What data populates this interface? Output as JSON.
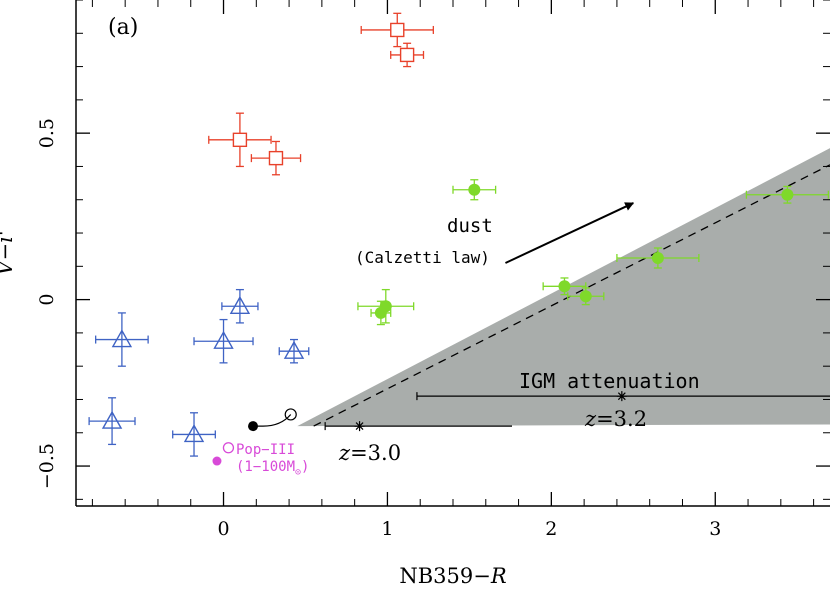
{
  "chart_data": {
    "type": "scatter",
    "panel_label": "(a)",
    "xlabel": "NB359−R",
    "ylabel": "V−i'",
    "xlim": [
      -0.9,
      3.7
    ],
    "ylim": [
      -0.62,
      0.9
    ],
    "xticks": [
      0,
      1,
      2,
      3
    ],
    "xtick_labels": [
      "0",
      "1",
      "2",
      "3"
    ],
    "yticks": [
      -0.5,
      0,
      0.5
    ],
    "ytick_labels": [
      "−0.5",
      "0",
      "0.5"
    ],
    "colors": {
      "red": "#e8412a",
      "blue": "#3f63c4",
      "green": "#7fd92a",
      "magenta": "#d84ad8",
      "shade": "#a9adab"
    },
    "series": [
      {
        "name": "red squares",
        "marker": "square-open",
        "color": "#e8412a",
        "points": [
          {
            "x": 1.06,
            "y": 0.81,
            "xerr": 0.22,
            "yerr": 0.05
          },
          {
            "x": 1.12,
            "y": 0.735,
            "xerr": 0.1,
            "yerr": 0.035
          },
          {
            "x": 0.1,
            "y": 0.48,
            "xerr": 0.19,
            "yerr": 0.08
          },
          {
            "x": 0.32,
            "y": 0.425,
            "xerr": 0.15,
            "yerr": 0.05
          }
        ]
      },
      {
        "name": "blue triangles",
        "marker": "triangle-open",
        "color": "#3f63c4",
        "points": [
          {
            "x": -0.62,
            "y": -0.12,
            "xerr": 0.16,
            "yerr": 0.08
          },
          {
            "x": 0.1,
            "y": -0.02,
            "xerr": 0.11,
            "yerr": 0.05
          },
          {
            "x": 0.0,
            "y": -0.125,
            "xerr": 0.18,
            "yerr": 0.065
          },
          {
            "x": 0.43,
            "y": -0.155,
            "xerr": 0.09,
            "yerr": 0.035
          },
          {
            "x": -0.68,
            "y": -0.365,
            "xerr": 0.14,
            "yerr": 0.07
          },
          {
            "x": -0.18,
            "y": -0.405,
            "xerr": 0.13,
            "yerr": 0.065
          }
        ]
      },
      {
        "name": "green filled circles",
        "marker": "circle-filled",
        "color": "#7fd92a",
        "points": [
          {
            "x": 1.53,
            "y": 0.33,
            "xerr": 0.13,
            "yerr": 0.03
          },
          {
            "x": 0.99,
            "y": -0.02,
            "xerr": 0.17,
            "yerr": 0.05
          },
          {
            "x": 0.96,
            "y": -0.04,
            "xerr": 0.06,
            "yerr": 0.035
          },
          {
            "x": 2.08,
            "y": 0.04,
            "xerr": 0.13,
            "yerr": 0.025
          },
          {
            "x": 2.21,
            "y": 0.01,
            "xerr": 0.11,
            "yerr": 0.025
          },
          {
            "x": 2.65,
            "y": 0.125,
            "xerr": 0.25,
            "yerr": 0.03
          },
          {
            "x": 3.44,
            "y": 0.315,
            "xerr": 0.25,
            "yerr": 0.025
          }
        ]
      }
    ],
    "popiii": {
      "label": "Pop−III",
      "sublabel": "(1−100M",
      "sub_symbol": "⊙",
      "sublabel_close": ")",
      "open_point": {
        "x": 0.03,
        "y": -0.445
      },
      "filled_point": {
        "x": -0.04,
        "y": -0.485
      }
    },
    "model_track": {
      "start_filled": {
        "x": 0.18,
        "y": -0.38
      },
      "end_open": {
        "x": 0.41,
        "y": -0.345
      }
    },
    "igm_region": {
      "label": "IGM attenuation",
      "polygon": [
        [
          0.45,
          -0.38
        ],
        [
          3.7,
          0.455
        ],
        [
          3.7,
          -0.375
        ]
      ]
    },
    "dashed_line": [
      [
        0.55,
        -0.38
      ],
      [
        3.7,
        0.405
      ]
    ],
    "redshift_markers": [
      {
        "label": "z=3.0",
        "x": 0.83,
        "y": -0.38,
        "xmin": 0.62,
        "xmax": 1.76
      },
      {
        "label": "z=3.2",
        "x": 2.43,
        "y": -0.29,
        "xmin": 1.18,
        "xmax": 3.7
      }
    ],
    "dust_vector": {
      "label": "dust",
      "sublabel": "(Calzetti law)",
      "from": [
        1.72,
        0.11
      ],
      "to": [
        2.5,
        0.29
      ]
    }
  }
}
